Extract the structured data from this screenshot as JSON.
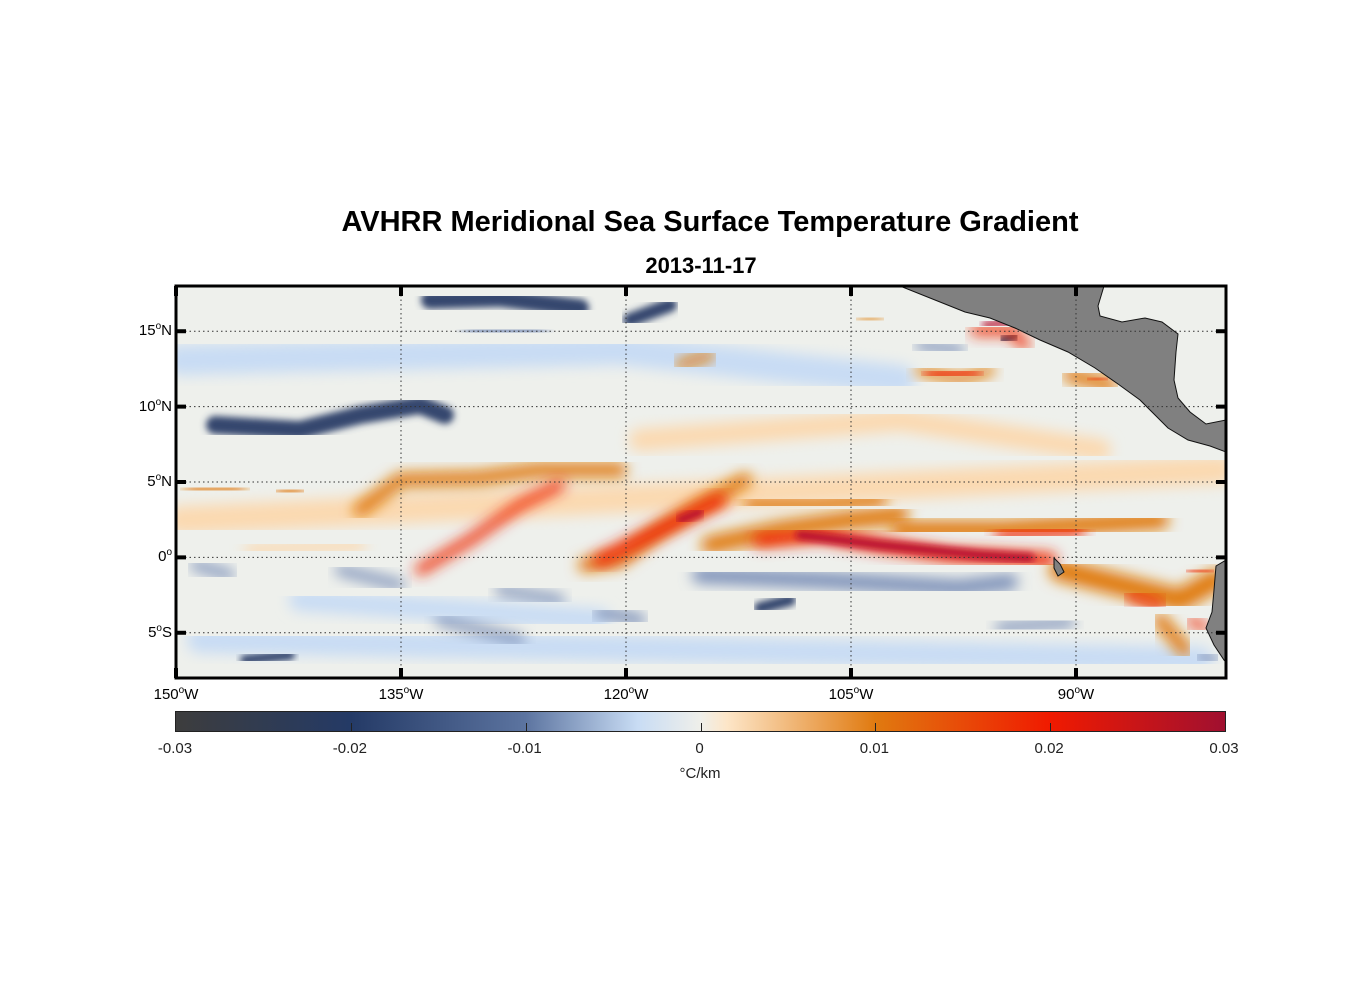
{
  "title": "AVHRR Meridional Sea Surface Temperature Gradient",
  "subtitle": "2013-11-17",
  "lat_labels": [
    {
      "num": "15",
      "sup": "o",
      "hem": "N"
    },
    {
      "num": "10",
      "sup": "o",
      "hem": "N"
    },
    {
      "num": "5",
      "sup": "o",
      "hem": "N"
    },
    {
      "num": "0",
      "sup": "o",
      "hem": ""
    },
    {
      "num": "5",
      "sup": "o",
      "hem": "S"
    }
  ],
  "lon_labels": [
    {
      "num": "150",
      "sup": "o",
      "hem": "W"
    },
    {
      "num": "135",
      "sup": "o",
      "hem": "W"
    },
    {
      "num": "120",
      "sup": "o",
      "hem": "W"
    },
    {
      "num": "105",
      "sup": "o",
      "hem": "W"
    },
    {
      "num": "90",
      "sup": "o",
      "hem": "W"
    }
  ],
  "colorbar": {
    "ticks": [
      "-0.03",
      "-0.02",
      "-0.01",
      "0",
      "0.01",
      "0.02",
      "0.03"
    ],
    "units": "°C/km",
    "range": [
      -0.03,
      0.03
    ],
    "colors": [
      "#3d3d3d",
      "#243a66",
      "#5c74a0",
      "#c8dcf4",
      "#efefea",
      "#fde6c8",
      "#e07a10",
      "#f01a00",
      "#a01030"
    ]
  },
  "map": {
    "lon_range": [
      -150,
      -80
    ],
    "lat_range": [
      -8,
      18
    ],
    "land_color": "#808080"
  }
}
